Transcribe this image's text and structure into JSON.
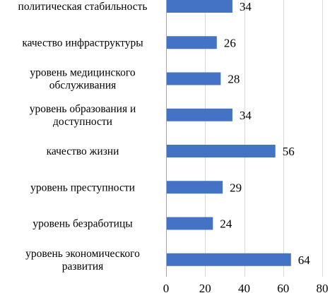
{
  "chart_data": {
    "type": "bar",
    "orientation": "horizontal",
    "categories": [
      "политическая стабильность",
      "качество инфраструктуры",
      "уровень медицинского обслуживания",
      "уровень образования и доступности",
      "качество жизни",
      "уровень преступности",
      "уровень безработицы",
      "уровень экономического развития"
    ],
    "category_lines": [
      [
        "политическая стабильность"
      ],
      [
        "качество инфраструктуры"
      ],
      [
        "уровень медицинского",
        "обслуживания"
      ],
      [
        "уровень образования и",
        "доступности"
      ],
      [
        "качество жизни"
      ],
      [
        "уровень преступности"
      ],
      [
        "уровень безработицы"
      ],
      [
        "уровень экономического",
        "развития"
      ]
    ],
    "values": [
      34,
      26,
      28,
      34,
      56,
      29,
      24,
      64
    ],
    "xlim": [
      0,
      80
    ],
    "xticks": [
      0,
      20,
      40,
      60,
      80
    ],
    "title": "",
    "xlabel": "",
    "ylabel": "",
    "grid": "vertical",
    "bar_color": "#4472C4",
    "grid_color": "#D9D9D9",
    "axis_color": "#A6A6A6"
  }
}
